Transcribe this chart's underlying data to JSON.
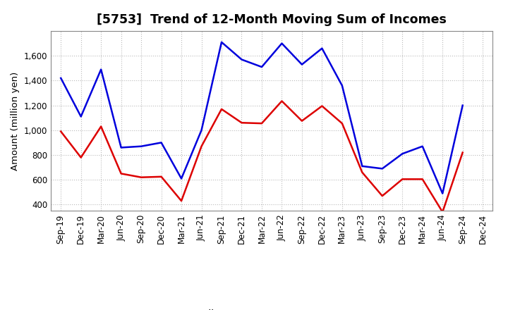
{
  "title": "[5753]  Trend of 12-Month Moving Sum of Incomes",
  "ylabel": "Amount (million yen)",
  "labels": [
    "Sep-19",
    "Dec-19",
    "Mar-20",
    "Jun-20",
    "Sep-20",
    "Dec-20",
    "Mar-21",
    "Jun-21",
    "Sep-21",
    "Dec-21",
    "Mar-22",
    "Jun-22",
    "Sep-22",
    "Dec-22",
    "Mar-23",
    "Jun-23",
    "Sep-23",
    "Dec-23",
    "Mar-24",
    "Jun-24",
    "Sep-24",
    "Dec-24"
  ],
  "ordinary_income": [
    1420,
    1110,
    1490,
    860,
    870,
    900,
    610,
    1000,
    1710,
    1570,
    1510,
    1700,
    1530,
    1660,
    1360,
    710,
    690,
    810,
    870,
    490,
    1200,
    null
  ],
  "net_income": [
    990,
    780,
    1030,
    650,
    620,
    625,
    430,
    870,
    1170,
    1060,
    1055,
    1235,
    1075,
    1195,
    1055,
    660,
    470,
    605,
    605,
    340,
    820,
    null
  ],
  "ordinary_color": "#0000dd",
  "net_color": "#dd0000",
  "ylim": [
    350,
    1800
  ],
  "yticks": [
    400,
    600,
    800,
    1000,
    1200,
    1400,
    1600
  ],
  "background_color": "#ffffff",
  "grid_color": "#bbbbbb",
  "title_fontsize": 12.5,
  "axis_label_fontsize": 9.5,
  "tick_fontsize": 8.5,
  "legend_fontsize": 10
}
